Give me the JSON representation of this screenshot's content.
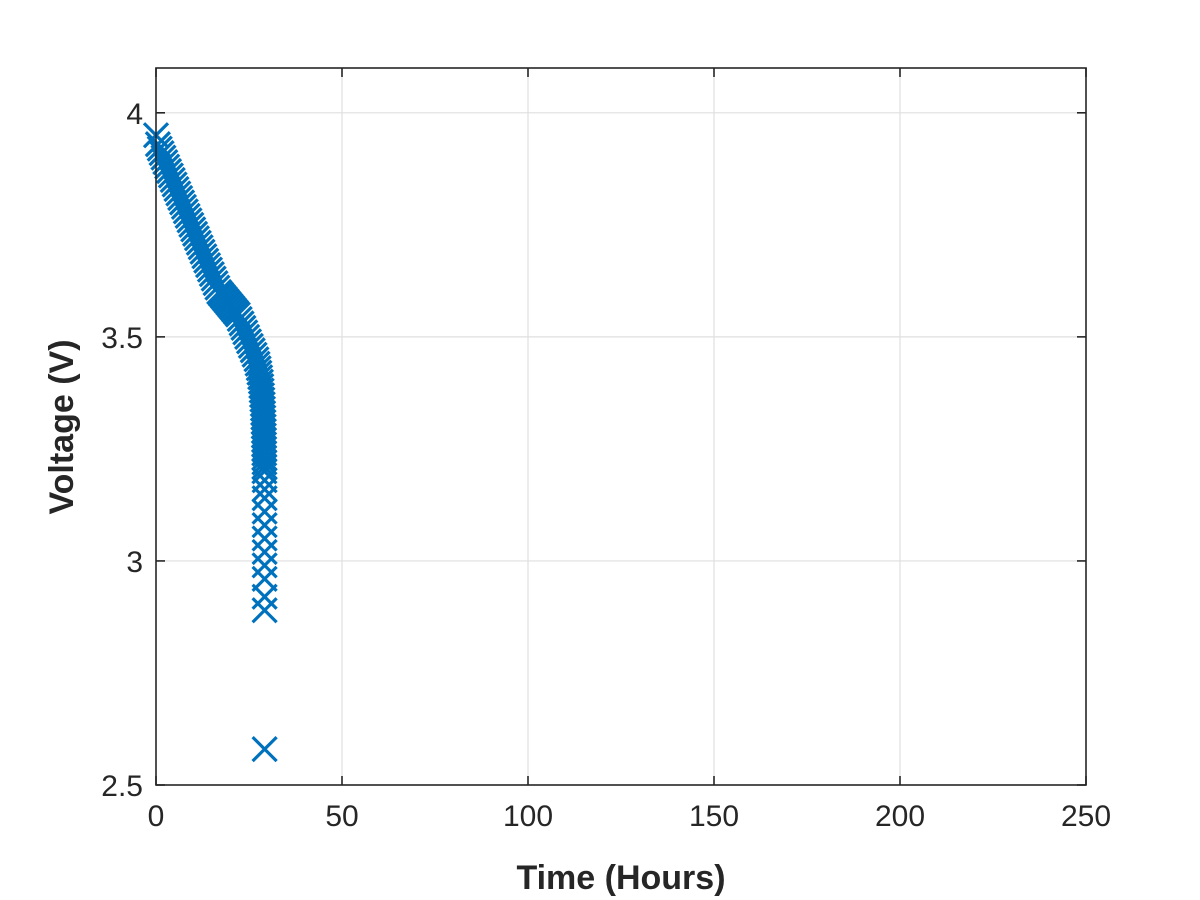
{
  "chart_data": {
    "type": "scatter",
    "title": "",
    "xlabel": "Time (Hours)",
    "ylabel": "Voltage (V)",
    "xlim": [
      0,
      250
    ],
    "ylim": [
      2.5,
      4.1
    ],
    "xticks": [
      0,
      50,
      100,
      150,
      200,
      250
    ],
    "yticks": [
      2.5,
      3,
      3.5,
      4
    ],
    "xtick_labels": [
      "0",
      "50",
      "100",
      "150",
      "200",
      "250"
    ],
    "ytick_labels": [
      "2.5",
      "3",
      "3.5",
      "4"
    ],
    "grid": true,
    "marker": "x",
    "series": [
      {
        "color": "#0072bd",
        "points": [
          [
            0.0,
            3.95
          ],
          [
            0.5,
            3.93
          ],
          [
            1.0,
            3.92
          ],
          [
            1.5,
            3.91
          ],
          [
            2.0,
            3.9
          ],
          [
            2.5,
            3.89
          ],
          [
            3.0,
            3.88
          ],
          [
            3.5,
            3.87
          ],
          [
            4.0,
            3.86
          ],
          [
            4.5,
            3.85
          ],
          [
            5.0,
            3.84
          ],
          [
            5.5,
            3.83
          ],
          [
            6.0,
            3.82
          ],
          [
            6.5,
            3.81
          ],
          [
            7.0,
            3.8
          ],
          [
            7.5,
            3.79
          ],
          [
            8.0,
            3.78
          ],
          [
            8.5,
            3.77
          ],
          [
            9.0,
            3.76
          ],
          [
            9.5,
            3.75
          ],
          [
            10.0,
            3.74
          ],
          [
            10.5,
            3.73
          ],
          [
            11.0,
            3.72
          ],
          [
            11.5,
            3.71
          ],
          [
            12.0,
            3.7
          ],
          [
            12.5,
            3.69
          ],
          [
            13.0,
            3.68
          ],
          [
            13.5,
            3.67
          ],
          [
            14.0,
            3.66
          ],
          [
            14.5,
            3.65
          ],
          [
            15.0,
            3.64
          ],
          [
            15.5,
            3.63
          ],
          [
            16.0,
            3.62
          ],
          [
            16.5,
            3.61
          ],
          [
            17.0,
            3.6
          ],
          [
            17.5,
            3.595
          ],
          [
            18.0,
            3.59
          ],
          [
            18.5,
            3.585
          ],
          [
            19.0,
            3.58
          ],
          [
            19.5,
            3.575
          ],
          [
            20.0,
            3.57
          ],
          [
            20.5,
            3.565
          ],
          [
            21.0,
            3.56
          ],
          [
            21.5,
            3.555
          ],
          [
            22.0,
            3.55
          ],
          [
            22.5,
            3.54
          ],
          [
            23.0,
            3.53
          ],
          [
            23.5,
            3.52
          ],
          [
            24.0,
            3.51
          ],
          [
            24.5,
            3.5
          ],
          [
            25.0,
            3.49
          ],
          [
            25.5,
            3.48
          ],
          [
            26.0,
            3.47
          ],
          [
            26.5,
            3.46
          ],
          [
            27.0,
            3.45
          ],
          [
            27.3,
            3.44
          ],
          [
            27.6,
            3.43
          ],
          [
            27.8,
            3.42
          ],
          [
            28.0,
            3.41
          ],
          [
            28.2,
            3.4
          ],
          [
            28.3,
            3.39
          ],
          [
            28.4,
            3.38
          ],
          [
            28.5,
            3.37
          ],
          [
            28.6,
            3.36
          ],
          [
            28.7,
            3.35
          ],
          [
            28.75,
            3.34
          ],
          [
            28.8,
            3.33
          ],
          [
            28.85,
            3.32
          ],
          [
            28.9,
            3.31
          ],
          [
            28.95,
            3.3
          ],
          [
            29.0,
            3.29
          ],
          [
            29.0,
            3.28
          ],
          [
            29.05,
            3.27
          ],
          [
            29.05,
            3.26
          ],
          [
            29.1,
            3.25
          ],
          [
            29.1,
            3.24
          ],
          [
            29.1,
            3.23
          ],
          [
            29.15,
            3.22
          ],
          [
            29.15,
            3.21
          ],
          [
            29.15,
            3.2
          ],
          [
            29.2,
            3.18
          ],
          [
            29.2,
            3.16
          ],
          [
            29.2,
            3.14
          ],
          [
            29.2,
            3.11
          ],
          [
            29.2,
            3.08
          ],
          [
            29.2,
            3.05
          ],
          [
            29.2,
            3.02
          ],
          [
            29.2,
            2.99
          ],
          [
            29.2,
            2.96
          ],
          [
            29.2,
            2.92
          ],
          [
            29.2,
            2.89
          ],
          [
            29.2,
            2.58
          ]
        ]
      }
    ]
  }
}
